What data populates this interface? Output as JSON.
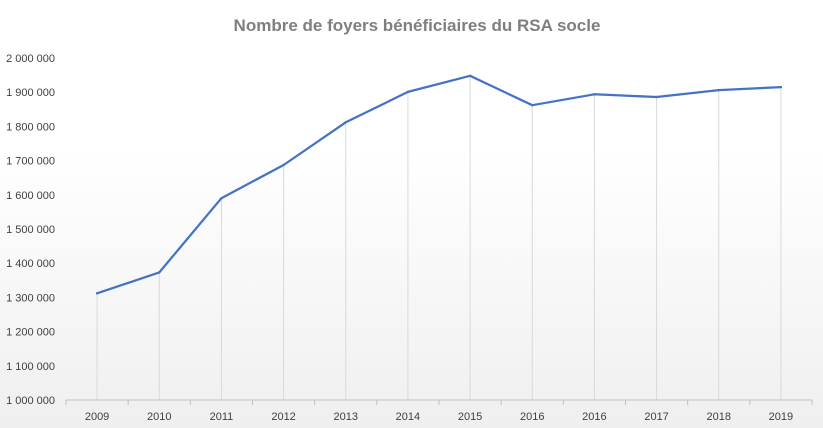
{
  "chart_data": {
    "type": "line",
    "title": "Nombre de foyers bénéficiaires du RSA socle",
    "xlabel": "",
    "ylabel": "",
    "categories": [
      "2009",
      "2010",
      "2011",
      "2012",
      "2013",
      "2014",
      "2015",
      "2016",
      "2016",
      "2017",
      "2018",
      "2019"
    ],
    "series": [
      {
        "values": [
          1312000,
          1373000,
          1590000,
          1687000,
          1812000,
          1901000,
          1948000,
          1862000,
          1894000,
          1886000,
          1906000,
          1915000
        ]
      }
    ],
    "ylim": [
      1000000,
      2000000
    ],
    "yticks": [
      1000000,
      1100000,
      1200000,
      1300000,
      1400000,
      1500000,
      1600000,
      1700000,
      1800000,
      1900000,
      2000000
    ],
    "ytick_labels": [
      "1 000 000",
      "1 100 000",
      "1 200 000",
      "1 300 000",
      "1 400 000",
      "1 500 000",
      "1 600 000",
      "1 700 000",
      "1 800 000",
      "1 900 000",
      "2 000 000"
    ],
    "grid": "vertical drop lines",
    "legend": "none",
    "colors": {
      "line": "#4472c4",
      "title": "#7f7f7f",
      "axis": "#bfbfbf",
      "droplines": "#d9d9d9",
      "tick_text": "#404040"
    }
  }
}
